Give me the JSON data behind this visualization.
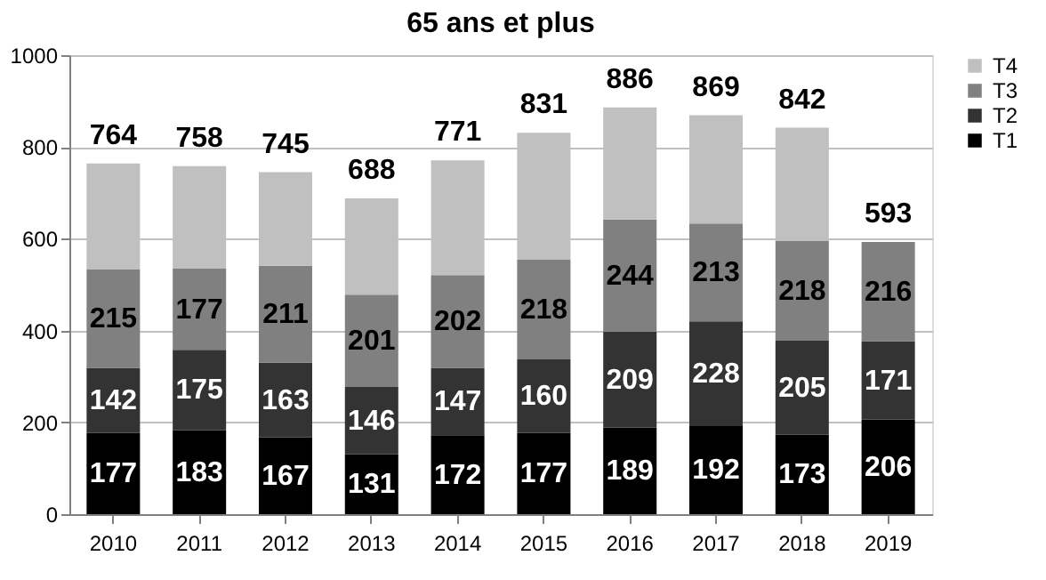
{
  "chart_data": {
    "type": "bar",
    "title": "65 ans et plus",
    "categories": [
      "2010",
      "2011",
      "2012",
      "2013",
      "2014",
      "2015",
      "2016",
      "2017",
      "2018",
      "2019"
    ],
    "stacked": true,
    "series": [
      {
        "name": "T1",
        "color": "#000000",
        "values": [
          177,
          183,
          167,
          131,
          172,
          177,
          189,
          192,
          173,
          206
        ],
        "value_labels": [
          "177",
          "183",
          "167",
          "131",
          "172",
          "177",
          "189",
          "192",
          "173",
          "206"
        ]
      },
      {
        "name": "T2",
        "color": "#333333",
        "values": [
          142,
          175,
          163,
          146,
          147,
          160,
          209,
          228,
          205,
          171
        ],
        "value_labels": [
          "142",
          "175",
          "163",
          "146",
          "147",
          "160",
          "209",
          "228",
          "205",
          "171"
        ]
      },
      {
        "name": "T3",
        "color": "#808080",
        "values": [
          215,
          177,
          211,
          201,
          202,
          218,
          244,
          213,
          218,
          216
        ],
        "value_labels": [
          "215",
          "177",
          "211",
          "201",
          "202",
          "218",
          "244",
          "213",
          "218",
          "216"
        ]
      },
      {
        "name": "T4",
        "color": "#c0c0c0",
        "values": [
          230,
          223,
          204,
          210,
          250,
          276,
          244,
          236,
          246,
          0
        ]
      }
    ],
    "totals": [
      "764",
      "758",
      "745",
      "688",
      "771",
      "831",
      "886",
      "869",
      "842",
      "593"
    ],
    "ylim": [
      0,
      1000
    ],
    "yticks": [
      0,
      200,
      400,
      600,
      800,
      1000
    ],
    "grid": "y",
    "legend": "right"
  }
}
